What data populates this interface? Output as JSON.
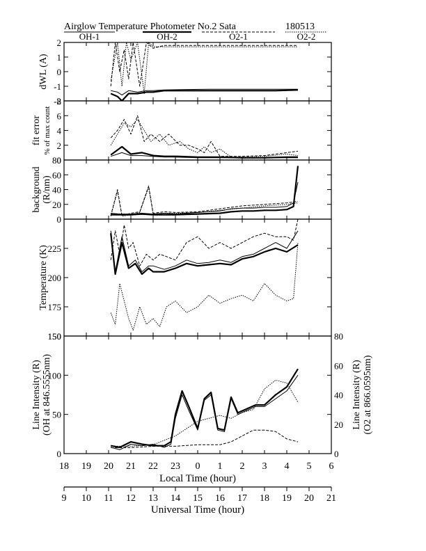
{
  "header": {
    "title": "Airglow Temperature Photometer No.2  Sata",
    "date_code": "180513"
  },
  "chart_data": {
    "type": "line",
    "legend": [
      {
        "name": "OH-1",
        "style": "solid-thin"
      },
      {
        "name": "OH-2",
        "style": "solid-thick"
      },
      {
        "name": "O2-1",
        "style": "dashed"
      },
      {
        "name": "O2-2",
        "style": "dotted"
      }
    ],
    "x_axis_local": {
      "label": "Local Time (hour)",
      "ticks": [
        "18",
        "19",
        "20",
        "21",
        "22",
        "23",
        "0",
        "1",
        "2",
        "3",
        "4",
        "5",
        "6"
      ]
    },
    "x_axis_ut": {
      "label": "Universal Time (hour)",
      "ticks": [
        "9",
        "10",
        "11",
        "12",
        "13",
        "14",
        "15",
        "16",
        "17",
        "18",
        "19",
        "20",
        "21"
      ]
    },
    "panels": [
      {
        "id": "dwl",
        "ylabel": "dWL (A)",
        "ylim": [
          -2,
          2
        ],
        "yticks": [
          "2",
          "1",
          "0",
          "-1",
          "-2"
        ],
        "series": [
          {
            "name": "OH-1",
            "x": [
              20.1,
              20.4,
              20.6,
              20.9,
              21.3,
              21.7,
              22.0,
              22.5,
              23.5,
              24.5,
              25.5,
              26.5,
              27.5,
              28.5
            ],
            "y": [
              -1.3,
              -1.4,
              -1.6,
              -1.3,
              -1.4,
              -1.3,
              -1.3,
              -1.25,
              -1.22,
              -1.2,
              -1.2,
              -1.2,
              -1.2,
              -1.2
            ]
          },
          {
            "name": "OH-2",
            "x": [
              20.1,
              20.4,
              20.6,
              20.9,
              21.3,
              21.7,
              22.0,
              22.5,
              23.5,
              24.5,
              25.5,
              26.5,
              27.5,
              28.5
            ],
            "y": [
              -1.5,
              -1.7,
              -2.0,
              -1.5,
              -1.5,
              -1.4,
              -1.4,
              -1.3,
              -1.3,
              -1.3,
              -1.3,
              -1.3,
              -1.3,
              -1.25
            ]
          },
          {
            "name": "O2-1",
            "x": [
              20.1,
              20.3,
              20.5,
              20.7,
              20.9,
              21.1,
              21.4,
              21.7,
              22.0,
              22.5,
              24,
              26,
              28,
              28.5
            ],
            "y": [
              -1.0,
              2.0,
              0.0,
              1.5,
              -0.5,
              2.0,
              -1.0,
              2.0,
              1.6,
              1.8,
              1.8,
              1.8,
              1.8,
              1.8
            ]
          },
          {
            "name": "O2-2",
            "x": [
              20.1,
              20.4,
              20.6,
              20.8,
              21.0,
              21.3,
              21.6,
              21.8,
              22.0,
              22.5,
              24,
              26,
              28,
              28.5
            ],
            "y": [
              -0.6,
              2.0,
              -1.0,
              2.0,
              0.8,
              2.0,
              -1.5,
              2.0,
              1.7,
              1.7,
              1.7,
              1.7,
              1.7,
              1.7
            ]
          }
        ]
      },
      {
        "id": "fit_error",
        "ylabel": "fit error",
        "ylabel2": "% of max count",
        "ylim": [
          0,
          8
        ],
        "yticks": [
          "8",
          "6",
          "4",
          "2",
          "0"
        ],
        "series": [
          {
            "name": "OH-1",
            "x": [
              20.1,
              20.6,
              21.0,
              21.5,
              22.0,
              22.5,
              23.0,
              24.0,
              25.0,
              26.0,
              27.0,
              28.0,
              28.5
            ],
            "y": [
              0.5,
              1.0,
              0.6,
              0.6,
              0.5,
              0.4,
              0.4,
              0.3,
              0.3,
              0.3,
              0.3,
              0.3,
              0.3
            ]
          },
          {
            "name": "OH-2",
            "x": [
              20.1,
              20.6,
              21.0,
              21.5,
              22.0,
              22.5,
              23.0,
              24.0,
              25.0,
              26.0,
              27.0,
              28.0,
              28.5
            ],
            "y": [
              0.7,
              1.8,
              0.8,
              1.0,
              0.6,
              0.5,
              0.5,
              0.4,
              0.4,
              0.3,
              0.3,
              0.4,
              0.4
            ]
          },
          {
            "name": "O2-1",
            "x": [
              20.1,
              20.4,
              20.7,
              21.0,
              21.3,
              21.6,
              21.9,
              22.3,
              22.7,
              23.2,
              23.6,
              24.0,
              24.3,
              24.6,
              25.0,
              25.5,
              26.0,
              27.0,
              28.0,
              28.5
            ],
            "y": [
              3.0,
              4.0,
              5.5,
              3.5,
              6.0,
              2.5,
              3.5,
              2.5,
              3.5,
              2.0,
              2.0,
              1.5,
              1.0,
              2.5,
              0.5,
              0.5,
              0.5,
              0.6,
              1.0,
              1.2
            ]
          },
          {
            "name": "O2-2",
            "x": [
              20.1,
              20.4,
              20.7,
              21.0,
              21.3,
              21.6,
              21.9,
              22.3,
              22.7,
              23.2,
              23.6,
              24.0,
              24.3,
              24.6,
              25.0,
              25.5,
              26.0,
              27.0,
              28.0,
              28.5
            ],
            "y": [
              2.0,
              3.5,
              5.0,
              4.5,
              5.5,
              4.0,
              2.5,
              3.5,
              2.0,
              2.5,
              1.5,
              1.0,
              1.8,
              1.0,
              1.5,
              0.4,
              0.4,
              0.5,
              0.8,
              0.6
            ]
          }
        ]
      },
      {
        "id": "background",
        "ylabel": "background",
        "ylabel2": "(R/nm)",
        "ylim": [
          0,
          80
        ],
        "yticks": [
          "80",
          "60",
          "40",
          "20",
          "0"
        ],
        "series": [
          {
            "name": "OH-1",
            "x": [
              20.1,
              20.5,
              21.0,
              21.5,
              22.0,
              22.5,
              23.0,
              24.0,
              25.0,
              25.5,
              26.0,
              26.5,
              27.0,
              27.5,
              28.0,
              28.3,
              28.5
            ],
            "y": [
              8,
              7,
              7,
              8,
              7,
              8,
              7,
              9,
              11,
              14,
              15,
              15,
              16,
              16,
              17,
              22,
              50
            ]
          },
          {
            "name": "OH-2",
            "x": [
              20.1,
              20.5,
              21.0,
              21.5,
              22.0,
              22.5,
              23.0,
              24.0,
              25.0,
              25.5,
              26.0,
              26.5,
              27.0,
              27.5,
              28.0,
              28.3,
              28.5
            ],
            "y": [
              6,
              6,
              6,
              7,
              6,
              6,
              6,
              7,
              8,
              10,
              11,
              11,
              12,
              12,
              13,
              17,
              72
            ]
          },
          {
            "name": "O2-1",
            "x": [
              20.1,
              20.4,
              20.6,
              21.0,
              21.4,
              21.8,
              22.0,
              22.5,
              23.0,
              24.0,
              25.0,
              26.0,
              27.0,
              28.0,
              28.5
            ],
            "y": [
              5,
              40,
              5,
              8,
              10,
              45,
              8,
              10,
              9,
              10,
              14,
              18,
              20,
              22,
              24
            ]
          },
          {
            "name": "O2-2",
            "x": [
              20.1,
              20.4,
              20.6,
              21.0,
              21.4,
              21.8,
              22.0,
              22.5,
              23.0,
              24.0,
              25.0,
              26.0,
              27.0,
              28.0,
              28.5
            ],
            "y": [
              4,
              38,
              4,
              6,
              9,
              43,
              7,
              8,
              8,
              9,
              12,
              15,
              18,
              20,
              22
            ]
          }
        ]
      },
      {
        "id": "temperature",
        "ylabel": "Temperature (K)",
        "ylim": [
          150,
          250
        ],
        "yticks": [
          "225",
          "200",
          "175",
          "150"
        ],
        "series": [
          {
            "name": "OH-1",
            "x": [
              20.1,
              20.3,
              20.6,
              20.9,
              21.2,
              21.5,
              21.8,
              22.0,
              22.5,
              23.0,
              23.5,
              24.0,
              24.5,
              25.0,
              25.5,
              26.0,
              26.5,
              27.0,
              27.5,
              28.0,
              28.5
            ],
            "y": [
              240,
              205,
              235,
              210,
              215,
              205,
              210,
              210,
              207,
              210,
              215,
              212,
              213,
              215,
              213,
              218,
              220,
              225,
              230,
              225,
              240
            ]
          },
          {
            "name": "OH-2",
            "x": [
              20.1,
              20.3,
              20.6,
              20.9,
              21.2,
              21.5,
              21.8,
              22.0,
              22.5,
              23.0,
              23.5,
              24.0,
              24.5,
              25.0,
              25.5,
              26.0,
              26.5,
              27.0,
              27.5,
              28.0,
              28.5
            ],
            "y": [
              238,
              203,
              230,
              208,
              212,
              203,
              208,
              205,
              205,
              208,
              212,
              210,
              211,
              212,
              211,
              216,
              218,
              222,
              225,
              222,
              228
            ]
          },
          {
            "name": "O2-1",
            "x": [
              20.1,
              20.3,
              20.5,
              20.7,
              20.9,
              21.1,
              21.4,
              21.7,
              22.0,
              22.3,
              22.6,
              23.0,
              23.5,
              24.0,
              24.5,
              25.0,
              25.5,
              26.0,
              26.5,
              27.0,
              27.5,
              28.0,
              28.3,
              28.5
            ],
            "y": [
              215,
              240,
              220,
              245,
              225,
              230,
              210,
              220,
              215,
              220,
              218,
              215,
              230,
              235,
              225,
              230,
              225,
              230,
              235,
              238,
              235,
              235,
              232,
              250
            ]
          },
          {
            "name": "O2-2",
            "x": [
              20.1,
              20.3,
              20.5,
              20.7,
              20.9,
              21.1,
              21.4,
              21.7,
              22.0,
              22.3,
              22.6,
              23.0,
              23.5,
              24.0,
              24.5,
              25.0,
              25.5,
              26.0,
              26.5,
              27.0,
              27.5,
              28.0,
              28.3,
              28.5
            ],
            "y": [
              170,
              160,
              195,
              180,
              165,
              155,
              175,
              160,
              165,
              158,
              175,
              180,
              170,
              175,
              185,
              178,
              182,
              185,
              180,
              195,
              185,
              180,
              182,
              230
            ]
          }
        ]
      },
      {
        "id": "intensity",
        "ylabel": "Line Intensity (R)",
        "ylabel2": "(OH at 846.5555nm)",
        "ylabel_right": "Line Intensity (R)",
        "ylabel_right2": "(O2 at 866.0595nm)",
        "ylim": [
          0,
          150
        ],
        "ylim_right": [
          0,
          80
        ],
        "yticks": [
          "150",
          "100",
          "50",
          "0"
        ],
        "yticks_right": [
          "80",
          "60",
          "40",
          "20",
          "0"
        ],
        "series": [
          {
            "name": "OH-1",
            "x": [
              20.1,
              20.5,
              21.0,
              21.5,
              22.0,
              22.5,
              22.8,
              23.0,
              23.3,
              23.6,
              24.0,
              24.3,
              24.6,
              24.9,
              25.2,
              25.5,
              25.8,
              26.2,
              26.6,
              27.0,
              27.5,
              28.0,
              28.5
            ],
            "y": [
              8,
              5,
              12,
              10,
              12,
              8,
              12,
              45,
              75,
              55,
              30,
              68,
              75,
              30,
              28,
              70,
              50,
              55,
              60,
              60,
              70,
              80,
              100
            ]
          },
          {
            "name": "OH-2",
            "x": [
              20.1,
              20.5,
              21.0,
              21.5,
              22.0,
              22.5,
              22.8,
              23.0,
              23.3,
              23.6,
              24.0,
              24.3,
              24.6,
              24.9,
              25.2,
              25.5,
              25.8,
              26.2,
              26.6,
              27.0,
              27.5,
              28.0,
              28.5
            ],
            "y": [
              10,
              8,
              15,
              12,
              10,
              10,
              15,
              50,
              80,
              60,
              32,
              70,
              78,
              32,
              30,
              72,
              52,
              57,
              62,
              62,
              75,
              85,
              108
            ]
          },
          {
            "name": "O2-1",
            "x": [
              20.1,
              21.0,
              22.0,
              23.0,
              24.0,
              25.0,
              25.5,
              26.0,
              26.5,
              27.0,
              27.5,
              28.0,
              28.5
            ],
            "y": [
              4,
              4,
              5,
              5,
              6,
              6,
              8,
              12,
              16,
              16,
              15,
              10,
              8
            ]
          },
          {
            "name": "O2-2",
            "x": [
              20.1,
              21.0,
              22.0,
              23.0,
              24.0,
              25.0,
              25.5,
              26.0,
              26.5,
              27.0,
              27.5,
              28.0,
              28.5
            ],
            "y": [
              5,
              5,
              6,
              12,
              22,
              26,
              24,
              28,
              30,
              44,
              50,
              48,
              35
            ]
          }
        ]
      }
    ]
  }
}
